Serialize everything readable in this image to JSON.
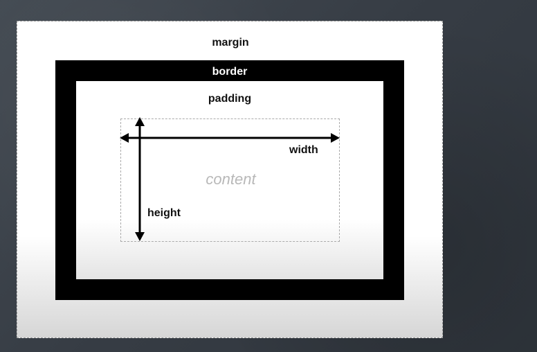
{
  "diagram": {
    "margin_label": "margin",
    "border_label": "border",
    "padding_label": "padding",
    "content_label": "content",
    "width_label": "width",
    "height_label": "height"
  },
  "colors": {
    "background": "#3a4149",
    "margin_fill": "#ffffff",
    "border_fill": "#000000",
    "content_text": "#b8b8b8"
  }
}
